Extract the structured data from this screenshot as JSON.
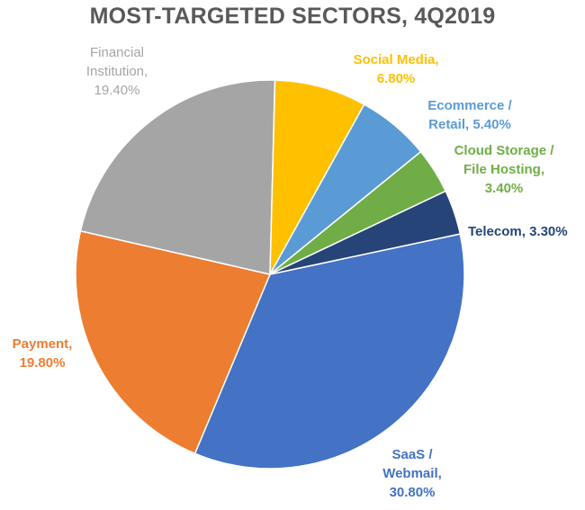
{
  "chart_data": {
    "type": "pie",
    "title": "MOST-TARGETED SECTORS, 4Q2019",
    "slices": [
      {
        "name": "SaaS / Webmail",
        "value": 30.8,
        "label_lines": [
          "SaaS /",
          "Webmail,",
          "30.80%"
        ],
        "color": "#4472C4"
      },
      {
        "name": "Payment",
        "value": 19.8,
        "label_lines": [
          "Payment,",
          "19.80%"
        ],
        "color": "#ED7D31"
      },
      {
        "name": "Financial Institution",
        "value": 19.4,
        "label_lines": [
          "Financial",
          "Institution,",
          "19.40%"
        ],
        "color": "#A5A5A5"
      },
      {
        "name": "Social Media",
        "value": 6.8,
        "label_lines": [
          "Social Media,",
          "6.80%"
        ],
        "color": "#FFC000"
      },
      {
        "name": "Ecommerce / Retail",
        "value": 5.4,
        "label_lines": [
          "Ecommerce /",
          "Retail, 5.40%"
        ],
        "color": "#5B9BD5"
      },
      {
        "name": "Cloud Storage / File Hosting",
        "value": 3.4,
        "label_lines": [
          "Cloud Storage /",
          "File Hosting,",
          "3.40%"
        ],
        "color": "#70AD47"
      },
      {
        "name": "Telecom",
        "value": 3.3,
        "label_lines": [
          "Telecom, 3.30%"
        ],
        "color": "#264478"
      }
    ]
  }
}
